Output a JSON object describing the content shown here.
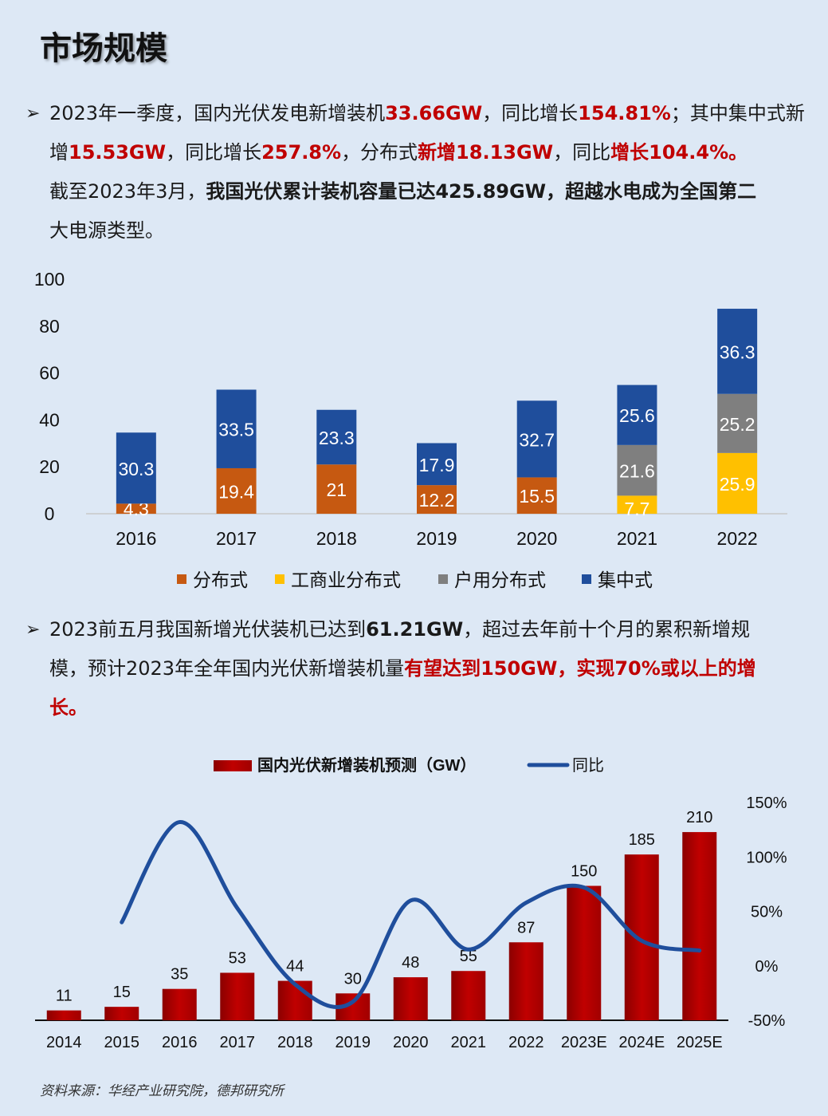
{
  "page_title": "市场规模",
  "bullet1": {
    "s1": "2023年一季度，国内光伏发电新增装机",
    "v1": "33.66GW",
    "s2": "，同比增长",
    "v2": "154.81%",
    "s3": "；其中集中式新增",
    "v3": "15.53GW",
    "s4": "，同比增长",
    "v4": "257.8%",
    "s5": "，分布式",
    "v5": "新增18.13GW",
    "s6": "，同比",
    "v6": "增长104.4%。",
    "s7": "截至2023年3月，",
    "s8": "我国光伏累计装机容量已达425.89GW，超越水电成为全国第二",
    "s9": "大电源类型。"
  },
  "bullet2": {
    "s1": "2023前五月我国新增光伏装机已达到",
    "v1": "61.21GW",
    "s2": "，超过去年前十个月的累积新增规模，预计2023年全年国内光伏新增装机量",
    "v2": "有望达到150GW，实现70%或以上的增长。"
  },
  "source": "资料来源：华经产业研究院，德邦研究所",
  "colors": {
    "distributed": "#c65911",
    "commercial": "#ffc000",
    "household": "#7f7f7f",
    "centralized": "#1f4e9c",
    "forecast_bar": "#c00000",
    "yoy_line": "#1f4e9c"
  },
  "chart_data": [
    {
      "type": "bar",
      "stacked": true,
      "categories": [
        "2016",
        "2017",
        "2018",
        "2019",
        "2020",
        "2021",
        "2022"
      ],
      "series": [
        {
          "name": "分布式",
          "color": "#c65911",
          "values": [
            4.3,
            19.4,
            21,
            12.2,
            15.5,
            null,
            null
          ]
        },
        {
          "name": "工商业分布式",
          "color": "#ffc000",
          "values": [
            null,
            null,
            null,
            null,
            null,
            7.7,
            25.9
          ]
        },
        {
          "name": "户用分布式",
          "color": "#7f7f7f",
          "values": [
            null,
            null,
            null,
            null,
            null,
            21.6,
            25.2
          ]
        },
        {
          "name": "集中式",
          "color": "#1f4e9c",
          "values": [
            30.3,
            33.5,
            23.3,
            17.9,
            32.7,
            25.6,
            36.3
          ]
        }
      ],
      "yticks": [
        "0",
        "20",
        "40",
        "60",
        "80",
        "100"
      ],
      "ylim": [
        0,
        100
      ],
      "legend": "bottom"
    },
    {
      "type": "bar+line",
      "title": "",
      "categories": [
        "2014",
        "2015",
        "2016",
        "2017",
        "2018",
        "2019",
        "2020",
        "2021",
        "2022",
        "2023E",
        "2024E",
        "2025E"
      ],
      "bars": {
        "name": "国内光伏新增装机预测（GW）",
        "values": [
          11,
          15,
          35,
          53,
          44,
          30,
          48,
          55,
          87,
          150,
          185,
          210
        ],
        "labels": [
          "11",
          "15",
          "35",
          "53",
          "44",
          "30",
          "48",
          "55",
          "87",
          "150",
          "185",
          "210"
        ]
      },
      "line": {
        "name": "同比",
        "values": [
          null,
          0.4,
          1.32,
          0.53,
          -0.17,
          -0.33,
          0.6,
          0.15,
          0.58,
          0.72,
          0.23,
          0.14
        ]
      },
      "y_right_ticks": [
        "150%",
        "100%",
        "50%",
        "0%",
        "-50%"
      ],
      "y_right_lim": [
        -0.5,
        1.5
      ],
      "ylim_bars": [
        0,
        235
      ],
      "legend": "top"
    }
  ]
}
